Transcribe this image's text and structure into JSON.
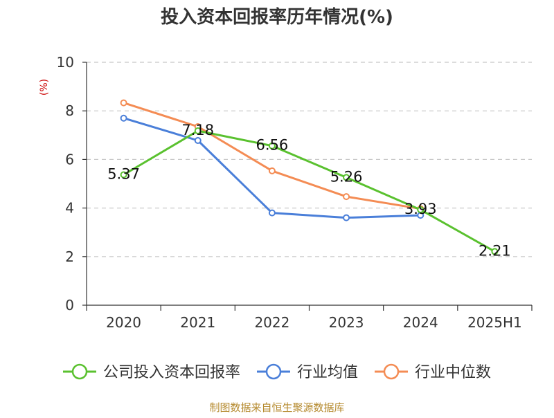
{
  "chart_data": {
    "type": "line",
    "title": "投入资本回报率历年情况(%)",
    "ylabel": "(%)",
    "xlabel": "",
    "categories": [
      "2020",
      "2021",
      "2022",
      "2023",
      "2024",
      "2025H1"
    ],
    "ylim": [
      0,
      10
    ],
    "yticks": [
      0,
      2,
      4,
      6,
      8,
      10
    ],
    "grid": true,
    "legend_position": "bottom",
    "series": [
      {
        "name": "公司投入资本回报率",
        "color": "#5ac12f",
        "values": [
          5.37,
          7.18,
          6.56,
          5.26,
          3.93,
          2.21
        ],
        "labels": [
          "5.37",
          "7.18",
          "6.56",
          "5.26",
          "3.93",
          "2.21"
        ]
      },
      {
        "name": "行业均值",
        "color": "#4a7fd9",
        "values": [
          7.7,
          6.78,
          3.8,
          3.6,
          3.7,
          null
        ]
      },
      {
        "name": "行业中位数",
        "color": "#f48c54",
        "values": [
          8.33,
          7.35,
          5.53,
          4.47,
          3.97,
          null
        ]
      }
    ]
  },
  "footer": {
    "source": "制图数据来自恒生聚源数据库",
    "source_color": "#b58a2e"
  }
}
